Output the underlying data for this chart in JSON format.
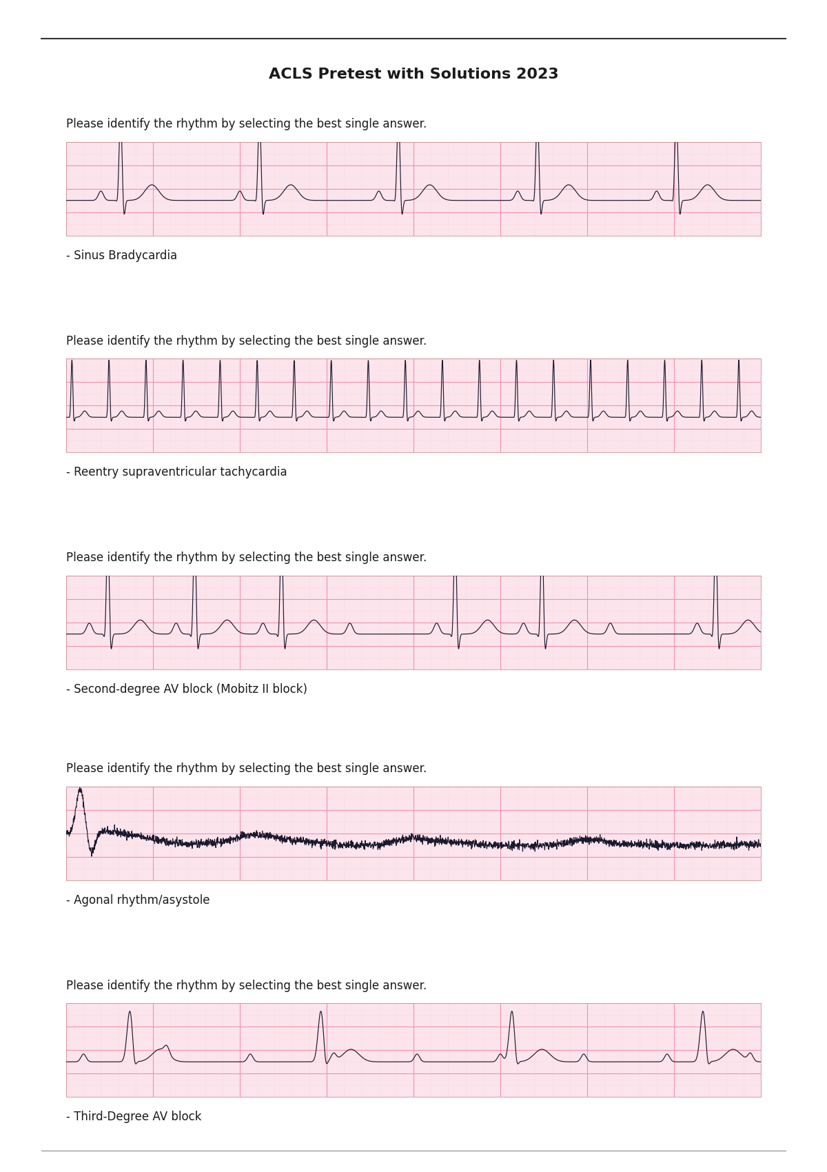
{
  "title": "ACLS Pretest with Solutions 2023",
  "title_bg": "#f0f0f0",
  "page_bg": "#ffffff",
  "ecg_bg": "#fce4ec",
  "ecg_grid_major": "#f48fb1",
  "ecg_grid_minor": "#fadadd",
  "ecg_line_color": "#1a1a2e",
  "question_text": "Please identify the rhythm by selecting the best single answer.",
  "answers": [
    "- Sinus Bradycardia",
    "- Reentry supraventricular tachycardia",
    "- Second-degree AV block (Mobitz II block)",
    "- Agonal rhythm/asystole",
    "- Third-Degree AV block"
  ],
  "text_color": "#1a1a1a",
  "font_size_title": 16,
  "font_size_question": 12,
  "font_size_answer": 12
}
